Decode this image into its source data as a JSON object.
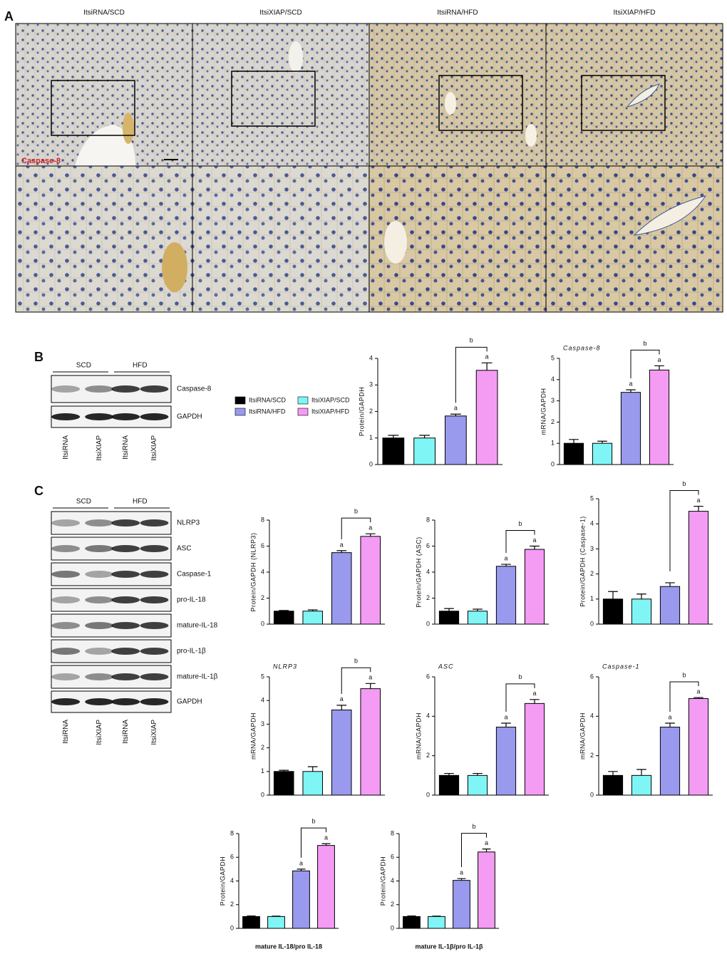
{
  "panel_a": {
    "label": "A",
    "columns": [
      "ItsiRNA/SCD",
      "ItsiXIAP/SCD",
      "ItsiRNA/HFD",
      "ItsiXIAP/HFD"
    ],
    "stain_label": "Caspase-8"
  },
  "panel_b": {
    "label": "B",
    "blot": {
      "groups": [
        "SCD",
        "HFD"
      ],
      "rows": [
        "Caspase-8",
        "GAPDH"
      ],
      "lanes": [
        "ItsiRNA",
        "ItsiXIAP",
        "ItsiRNA",
        "ItsiXIAP"
      ]
    }
  },
  "legend": {
    "items": [
      {
        "name": "ItsiRNA/SCD",
        "color": "#000000"
      },
      {
        "name": "ItsiXIAP/SCD",
        "color": "#7ff5f5"
      },
      {
        "name": "ItsiRNA/HFD",
        "color": "#9999ee"
      },
      {
        "name": "ItsiXIAP/HFD",
        "color": "#f49bf4"
      }
    ]
  },
  "panel_c": {
    "label": "C",
    "blot": {
      "groups": [
        "SCD",
        "HFD"
      ],
      "rows": [
        "NLRP3",
        "ASC",
        "Caspase-1",
        "pro-IL-18",
        "mature-IL-18",
        "pro-IL-1β",
        "mature-IL-1β",
        "GAPDH"
      ],
      "lanes": [
        "ItsiRNA",
        "ItsiXIAP",
        "ItsiRNA",
        "ItsiXIAP"
      ]
    }
  },
  "chart_data": [
    {
      "type": "bar",
      "ylabel": "Protein/GAPDH",
      "values": [
        1.0,
        1.0,
        1.83,
        3.55
      ],
      "errors": [
        0.1,
        0.1,
        0.07,
        0.28
      ],
      "colors": [
        "#000000",
        "#7ff5f5",
        "#9999ee",
        "#f49bf4"
      ],
      "value_annotations": [
        null,
        null,
        "a",
        "a"
      ],
      "bracket": {
        "from": 2,
        "to": 3,
        "label": "b"
      },
      "ylim": [
        0,
        4
      ],
      "yticks": [
        0,
        1,
        2,
        3,
        4
      ]
    },
    {
      "type": "bar",
      "title": "Caspase-8",
      "title_italic": true,
      "ylabel": "mRNA/GAPDH",
      "values": [
        1.0,
        1.0,
        3.4,
        4.45
      ],
      "errors": [
        0.18,
        0.1,
        0.12,
        0.2
      ],
      "colors": [
        "#000000",
        "#7ff5f5",
        "#9999ee",
        "#f49bf4"
      ],
      "value_annotations": [
        null,
        null,
        "a",
        "a"
      ],
      "bracket": {
        "from": 2,
        "to": 3,
        "label": "b"
      },
      "ylim": [
        0,
        5
      ],
      "yticks": [
        0,
        1,
        2,
        3,
        4,
        5
      ]
    },
    {
      "type": "bar",
      "ylabel": "Protein/GAPDH (NLRP3)",
      "values": [
        1.0,
        1.0,
        5.5,
        6.75
      ],
      "errors": [
        0.05,
        0.1,
        0.15,
        0.2
      ],
      "colors": [
        "#000000",
        "#7ff5f5",
        "#9999ee",
        "#f49bf4"
      ],
      "value_annotations": [
        null,
        null,
        "a",
        "a"
      ],
      "bracket": {
        "from": 2,
        "to": 3,
        "label": "b"
      },
      "ylim": [
        0,
        8
      ],
      "yticks": [
        0,
        2,
        4,
        6,
        8
      ]
    },
    {
      "type": "bar",
      "ylabel": "Protein/GAPDH (ASC)",
      "values": [
        1.0,
        1.0,
        4.45,
        5.75
      ],
      "errors": [
        0.2,
        0.15,
        0.15,
        0.25
      ],
      "colors": [
        "#000000",
        "#7ff5f5",
        "#9999ee",
        "#f49bf4"
      ],
      "value_annotations": [
        null,
        null,
        "a",
        "a"
      ],
      "bracket": {
        "from": 2,
        "to": 3,
        "label": "b"
      },
      "ylim": [
        0,
        8
      ],
      "yticks": [
        0,
        2,
        4,
        6,
        8
      ]
    },
    {
      "type": "bar",
      "ylabel": "Protein/GAPDH (Caspase-1)",
      "values": [
        1.0,
        1.0,
        1.5,
        4.5
      ],
      "errors": [
        0.3,
        0.2,
        0.15,
        0.2
      ],
      "colors": [
        "#000000",
        "#7ff5f5",
        "#9999ee",
        "#f49bf4"
      ],
      "value_annotations": [
        null,
        null,
        null,
        "a"
      ],
      "bracket": {
        "from": 2,
        "to": 3,
        "label": "b"
      },
      "ylim": [
        0,
        5
      ],
      "yticks": [
        0,
        1,
        2,
        3,
        4,
        5
      ]
    },
    {
      "type": "bar",
      "title": "NLRP3",
      "title_italic": true,
      "ylabel": "mRNA/GAPDH",
      "values": [
        1.0,
        1.0,
        3.6,
        4.5
      ],
      "errors": [
        0.05,
        0.2,
        0.2,
        0.22
      ],
      "colors": [
        "#000000",
        "#7ff5f5",
        "#9999ee",
        "#f49bf4"
      ],
      "value_annotations": [
        null,
        null,
        "a",
        "a"
      ],
      "bracket": {
        "from": 2,
        "to": 3,
        "label": "b"
      },
      "ylim": [
        0,
        5
      ],
      "yticks": [
        0,
        1,
        2,
        3,
        4,
        5
      ]
    },
    {
      "type": "bar",
      "title": "ASC",
      "title_italic": true,
      "ylabel": "mRNA/GAPDH",
      "values": [
        1.0,
        1.0,
        3.45,
        4.65
      ],
      "errors": [
        0.1,
        0.1,
        0.2,
        0.2
      ],
      "colors": [
        "#000000",
        "#7ff5f5",
        "#9999ee",
        "#f49bf4"
      ],
      "value_annotations": [
        null,
        null,
        "a",
        "a"
      ],
      "bracket": {
        "from": 2,
        "to": 3,
        "label": "b"
      },
      "ylim": [
        0,
        6
      ],
      "yticks": [
        0,
        2,
        4,
        6
      ]
    },
    {
      "type": "bar",
      "title": "Caspase-1",
      "title_italic": true,
      "ylabel": "mRNA/GAPDH",
      "values": [
        1.0,
        1.0,
        3.45,
        4.9
      ],
      "errors": [
        0.2,
        0.3,
        0.2,
        0.05
      ],
      "colors": [
        "#000000",
        "#7ff5f5",
        "#9999ee",
        "#f49bf4"
      ],
      "value_annotations": [
        null,
        null,
        "a",
        "a"
      ],
      "bracket": {
        "from": 2,
        "to": 3,
        "label": "b"
      },
      "ylim": [
        0,
        6
      ],
      "yticks": [
        0,
        2,
        4,
        6
      ]
    },
    {
      "type": "bar",
      "ylabel": "Protein/GAPDH",
      "xlabel": "mature IL-18/pro IL-18",
      "values": [
        1.0,
        1.0,
        4.85,
        7.0
      ],
      "errors": [
        0.05,
        0.03,
        0.15,
        0.15
      ],
      "colors": [
        "#000000",
        "#7ff5f5",
        "#9999ee",
        "#f49bf4"
      ],
      "value_annotations": [
        null,
        null,
        "a",
        "a"
      ],
      "bracket": {
        "from": 2,
        "to": 3,
        "label": "b"
      },
      "ylim": [
        0,
        8
      ],
      "yticks": [
        0,
        2,
        4,
        6,
        8
      ]
    },
    {
      "type": "bar",
      "ylabel": "Protein/GAPDH",
      "xlabel": "mature IL-1β/pro IL-1β",
      "values": [
        1.0,
        1.0,
        4.05,
        6.45
      ],
      "errors": [
        0.05,
        0.03,
        0.15,
        0.25
      ],
      "colors": [
        "#000000",
        "#7ff5f5",
        "#9999ee",
        "#f49bf4"
      ],
      "value_annotations": [
        null,
        null,
        "a",
        "a"
      ],
      "bracket": {
        "from": 2,
        "to": 3,
        "label": "b"
      },
      "ylim": [
        0,
        8
      ],
      "yticks": [
        0,
        2,
        4,
        6,
        8
      ]
    }
  ]
}
